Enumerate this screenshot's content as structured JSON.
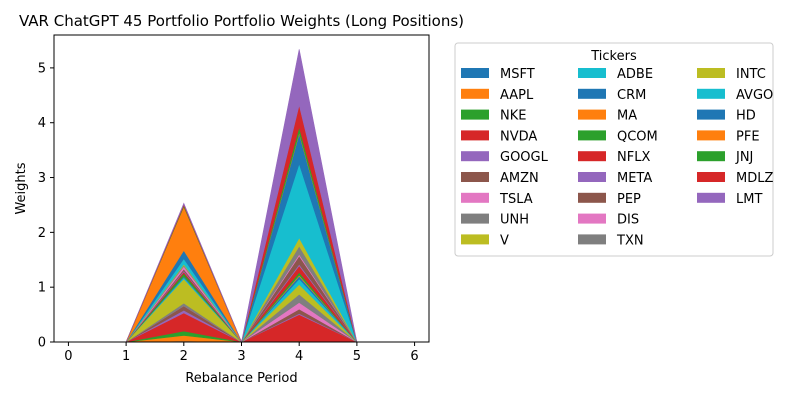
{
  "chart_data": {
    "type": "area",
    "stacked": true,
    "title": "VAR ChatGPT 45 Portfolio Portfolio Weights (Long Positions)",
    "xlabel": "Rebalance Period",
    "ylabel": "Weights",
    "x": [
      0,
      1,
      2,
      3,
      4,
      5,
      6
    ],
    "xlim": [
      -0.25,
      6.25
    ],
    "ylim": [
      0,
      5.6
    ],
    "x_ticks": [
      "0",
      "1",
      "2",
      "3",
      "4",
      "5",
      "6"
    ],
    "y_ticks": [
      "0",
      "1",
      "2",
      "3",
      "4",
      "5"
    ],
    "grid": false,
    "legend": {
      "title": "Tickers",
      "placement": "outside-right",
      "columns": 3
    },
    "series": [
      {
        "name": "MSFT",
        "color": "#1f77b4",
        "values": [
          0,
          0,
          0.02,
          0,
          0.0,
          0,
          0
        ]
      },
      {
        "name": "AAPL",
        "color": "#ff7f0e",
        "values": [
          0,
          0,
          0.1,
          0,
          0.0,
          0,
          0
        ]
      },
      {
        "name": "NKE",
        "color": "#2ca02c",
        "values": [
          0,
          0,
          0.08,
          0,
          0.02,
          0,
          0
        ]
      },
      {
        "name": "NVDA",
        "color": "#d62728",
        "values": [
          0,
          0,
          0.33,
          0,
          0.48,
          0,
          0
        ]
      },
      {
        "name": "GOOGL",
        "color": "#9467bd",
        "values": [
          0,
          0,
          0.05,
          0,
          0.02,
          0,
          0
        ]
      },
      {
        "name": "AMZN",
        "color": "#8c564b",
        "values": [
          0,
          0,
          0.08,
          0,
          0.08,
          0,
          0
        ]
      },
      {
        "name": "TSLA",
        "color": "#e377c2",
        "values": [
          0,
          0,
          0.0,
          0,
          0.12,
          0,
          0
        ]
      },
      {
        "name": "UNH",
        "color": "#7f7f7f",
        "values": [
          0,
          0,
          0.05,
          0,
          0.15,
          0,
          0
        ]
      },
      {
        "name": "V",
        "color": "#bcbd22",
        "values": [
          0,
          0,
          0.44,
          0,
          0.18,
          0,
          0
        ]
      },
      {
        "name": "ADBE",
        "color": "#17becf",
        "values": [
          0,
          0,
          0.03,
          0,
          0.1,
          0,
          0
        ]
      },
      {
        "name": "CRM",
        "color": "#1f77b4",
        "values": [
          0,
          0,
          0.02,
          0,
          0.05,
          0,
          0
        ]
      },
      {
        "name": "MA",
        "color": "#ff7f0e",
        "values": [
          0,
          0,
          0.0,
          0,
          0.02,
          0,
          0
        ]
      },
      {
        "name": "QCOM",
        "color": "#2ca02c",
        "values": [
          0,
          0,
          0.05,
          0,
          0.05,
          0,
          0
        ]
      },
      {
        "name": "NFLX",
        "color": "#d62728",
        "values": [
          0,
          0,
          0.03,
          0,
          0.12,
          0,
          0
        ]
      },
      {
        "name": "META",
        "color": "#9467bd",
        "values": [
          0,
          0,
          0.02,
          0,
          0.03,
          0,
          0
        ]
      },
      {
        "name": "PEP",
        "color": "#8c564b",
        "values": [
          0,
          0,
          0.03,
          0,
          0.15,
          0,
          0
        ]
      },
      {
        "name": "DIS",
        "color": "#e377c2",
        "values": [
          0,
          0,
          0.05,
          0,
          0.03,
          0,
          0
        ]
      },
      {
        "name": "TXN",
        "color": "#7f7f7f",
        "values": [
          0,
          0,
          0.02,
          0,
          0.15,
          0,
          0
        ]
      },
      {
        "name": "INTC",
        "color": "#bcbd22",
        "values": [
          0,
          0,
          0.02,
          0,
          0.15,
          0,
          0
        ]
      },
      {
        "name": "AVGO",
        "color": "#17becf",
        "values": [
          0,
          0,
          0.1,
          0,
          1.35,
          0,
          0
        ]
      },
      {
        "name": "HD",
        "color": "#1f77b4",
        "values": [
          0,
          0,
          0.15,
          0,
          0.55,
          0,
          0
        ]
      },
      {
        "name": "PFE",
        "color": "#ff7f0e",
        "values": [
          0,
          0,
          0.8,
          0,
          0.02,
          0,
          0
        ]
      },
      {
        "name": "JNJ",
        "color": "#2ca02c",
        "values": [
          0,
          0,
          0.02,
          0,
          0.1,
          0,
          0
        ]
      },
      {
        "name": "MDLZ",
        "color": "#d62728",
        "values": [
          0,
          0,
          0.02,
          0,
          0.4,
          0,
          0
        ]
      },
      {
        "name": "LMT",
        "color": "#9467bd",
        "values": [
          0,
          0,
          0.02,
          0,
          1.02,
          0,
          0
        ]
      }
    ]
  }
}
